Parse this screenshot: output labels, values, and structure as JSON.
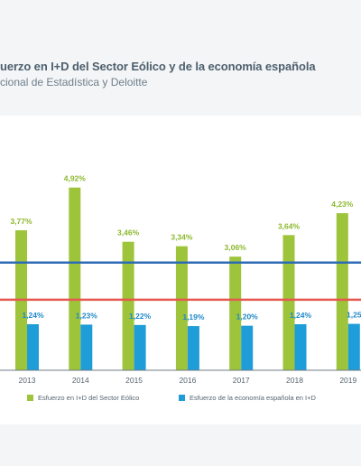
{
  "header": {
    "title": "uerzo en I+D del Sector Eólico y de la economía española",
    "subtitle": "cional de Estadística y Deloitte"
  },
  "colors": {
    "wind_series": "#9ec43c",
    "economy_series": "#1e9dd8",
    "blue_line": "#2f6cb5",
    "red_line": "#e45a4f",
    "label_green": "#8cb82d",
    "label_blue": "#1e88c8",
    "axis": "#6f7b85"
  },
  "chart_data": {
    "type": "bar",
    "categories": [
      "2013",
      "2014",
      "2015",
      "2016",
      "2017",
      "2018",
      "2019"
    ],
    "series": [
      {
        "name": "Esfuerzo en I+D del Sector Eólico",
        "values": [
          3.77,
          4.92,
          3.46,
          3.34,
          3.06,
          3.64,
          4.23
        ],
        "labels": [
          "3,77%",
          "4,92%",
          "3,46%",
          "3,34%",
          "3,06%",
          "3,64%",
          "4,23%"
        ]
      },
      {
        "name": "Esfuerzo de la economía española en I+D",
        "values": [
          1.24,
          1.23,
          1.22,
          1.19,
          1.2,
          1.24,
          1.25
        ],
        "labels": [
          "1,24%",
          "1,23%",
          "1,22%",
          "1,19%",
          "1,20%",
          "1,24%",
          "1,25"
        ]
      }
    ],
    "reference_lines": [
      {
        "color": "blue",
        "value": 2.9
      },
      {
        "color": "red",
        "value": 1.9
      }
    ],
    "ylim": [
      0,
      5.35
    ],
    "grid": false,
    "legend": "bottom",
    "xlabel": "",
    "ylabel": ""
  }
}
